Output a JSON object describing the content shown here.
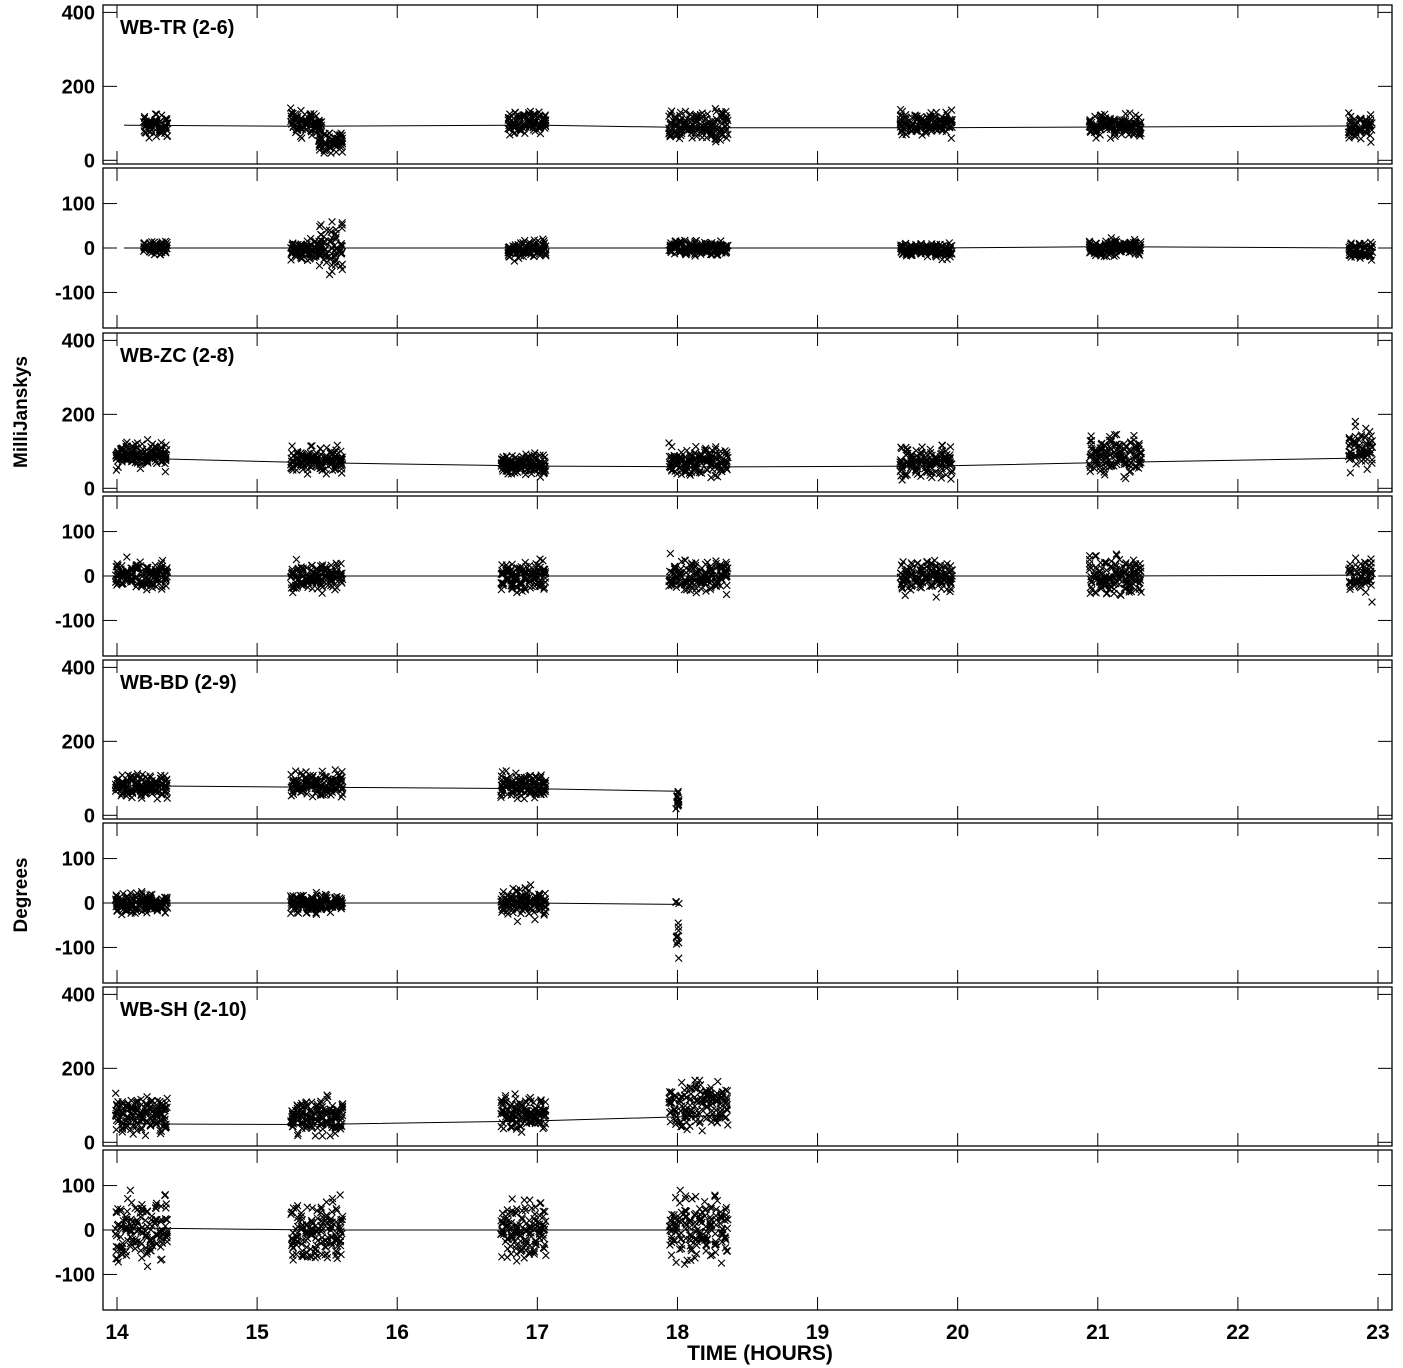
{
  "figure": {
    "y_label_amp": "MilliJanskys",
    "y_label_phase": "Degrees",
    "x_label": "TIME (HOURS)"
  },
  "chart_data": {
    "type": "scatter",
    "x_axis": {
      "label": "TIME (HOURS)",
      "range": [
        13.9,
        23.1
      ],
      "ticks": [
        14,
        15,
        16,
        17,
        18,
        19,
        20,
        21,
        22,
        23
      ]
    },
    "amp_axis": {
      "range": [
        -10,
        420
      ],
      "ticks": [
        0,
        200,
        400
      ],
      "unit": "MilliJanskys"
    },
    "phase_axis": {
      "range": [
        -180,
        180
      ],
      "ticks": [
        -100,
        0,
        100
      ],
      "unit": "Degrees"
    },
    "panels": [
      {
        "title": "WB-TR (2-6)",
        "amp_model": [
          [
            14.05,
            95
          ],
          [
            15.3,
            92
          ],
          [
            17.0,
            95
          ],
          [
            18.2,
            88
          ],
          [
            19.8,
            88
          ],
          [
            21.1,
            90
          ],
          [
            22.9,
            93
          ]
        ],
        "phase_model": [
          [
            14.05,
            0
          ],
          [
            15.3,
            0
          ],
          [
            17.0,
            0
          ],
          [
            18.2,
            0
          ],
          [
            19.8,
            0
          ],
          [
            21.1,
            3
          ],
          [
            22.9,
            0
          ]
        ],
        "scans": [
          {
            "t": [
              14.2,
              14.35
            ],
            "amp": 95,
            "amp_spread": 45,
            "phase": 0,
            "phase_spread": 25
          },
          {
            "t": [
              15.25,
              15.45
            ],
            "amp": 100,
            "amp_spread": 45,
            "phase": -5,
            "phase_spread": 30
          },
          {
            "t": [
              15.45,
              15.6
            ],
            "amp": 50,
            "amp_spread": 45,
            "phase": 0,
            "phase_spread": 85
          },
          {
            "t": [
              16.8,
              17.05
            ],
            "amp": 100,
            "amp_spread": 45,
            "phase": -5,
            "phase_spread": 30
          },
          {
            "t": [
              17.95,
              18.35
            ],
            "amp": 95,
            "amp_spread": 55,
            "phase": 0,
            "phase_spread": 25
          },
          {
            "t": [
              19.6,
              19.95
            ],
            "amp": 100,
            "amp_spread": 45,
            "phase": -5,
            "phase_spread": 25
          },
          {
            "t": [
              20.95,
              21.3
            ],
            "amp": 95,
            "amp_spread": 45,
            "phase": 0,
            "phase_spread": 25
          },
          {
            "t": [
              22.8,
              22.95
            ],
            "amp": 90,
            "amp_spread": 45,
            "phase": -5,
            "phase_spread": 30
          }
        ]
      },
      {
        "title": "WB-ZC (2-8)",
        "amp_model": [
          [
            14.05,
            82
          ],
          [
            15.3,
            70
          ],
          [
            17.0,
            60
          ],
          [
            18.3,
            58
          ],
          [
            19.8,
            60
          ],
          [
            21.1,
            70
          ],
          [
            22.9,
            82
          ]
        ],
        "phase_model": [
          [
            14.05,
            0
          ],
          [
            15.3,
            0
          ],
          [
            17.0,
            0
          ],
          [
            18.2,
            0
          ],
          [
            19.8,
            0
          ],
          [
            21.1,
            0
          ],
          [
            22.9,
            2
          ]
        ],
        "scans": [
          {
            "t": [
              14.0,
              14.35
            ],
            "amp": 90,
            "amp_spread": 50,
            "phase": 0,
            "phase_spread": 45
          },
          {
            "t": [
              15.25,
              15.6
            ],
            "amp": 75,
            "amp_spread": 50,
            "phase": 0,
            "phase_spread": 45
          },
          {
            "t": [
              16.75,
              17.05
            ],
            "amp": 65,
            "amp_spread": 45,
            "phase": 0,
            "phase_spread": 50
          },
          {
            "t": [
              17.95,
              18.35
            ],
            "amp": 70,
            "amp_spread": 60,
            "phase": 0,
            "phase_spread": 55
          },
          {
            "t": [
              19.6,
              19.95
            ],
            "amp": 70,
            "amp_spread": 55,
            "phase": 0,
            "phase_spread": 50
          },
          {
            "t": [
              20.95,
              21.3
            ],
            "amp": 90,
            "amp_spread": 75,
            "phase": 0,
            "phase_spread": 65
          },
          {
            "t": [
              22.8,
              22.95
            ],
            "amp": 110,
            "amp_spread": 80,
            "phase": 0,
            "phase_spread": 65
          }
        ]
      },
      {
        "title": "WB-BD (2-9)",
        "amp_model": [
          [
            14.05,
            80
          ],
          [
            15.4,
            76
          ],
          [
            16.95,
            72
          ],
          [
            18.0,
            65
          ]
        ],
        "phase_model": [
          [
            14.05,
            0
          ],
          [
            15.4,
            0
          ],
          [
            16.95,
            0
          ],
          [
            18.0,
            -3
          ]
        ],
        "scans": [
          {
            "t": [
              14.0,
              14.35
            ],
            "amp": 80,
            "amp_spread": 45,
            "phase": 0,
            "phase_spread": 35
          },
          {
            "t": [
              15.25,
              15.6
            ],
            "amp": 85,
            "amp_spread": 45,
            "phase": 0,
            "phase_spread": 30
          },
          {
            "t": [
              16.75,
              17.05
            ],
            "amp": 80,
            "amp_spread": 50,
            "phase": 0,
            "phase_spread": 45
          },
          {
            "t": [
              18.0,
              18.01
            ],
            "amp": 40,
            "amp_spread": 35,
            "phase": -40,
            "phase_spread": 110
          }
        ]
      },
      {
        "title": "WB-SH (2-10)",
        "amp_model": [
          [
            14.05,
            50
          ],
          [
            15.4,
            48
          ],
          [
            17.0,
            58
          ],
          [
            18.3,
            72
          ]
        ],
        "phase_model": [
          [
            14.05,
            5
          ],
          [
            15.4,
            0
          ],
          [
            17.0,
            0
          ],
          [
            18.3,
            0
          ]
        ],
        "scans": [
          {
            "t": [
              14.0,
              14.35
            ],
            "amp": 75,
            "amp_spread": 70,
            "phase": 0,
            "phase_spread": 100
          },
          {
            "t": [
              15.25,
              15.6
            ],
            "amp": 70,
            "amp_spread": 70,
            "phase": 0,
            "phase_spread": 100
          },
          {
            "t": [
              16.75,
              17.05
            ],
            "amp": 80,
            "amp_spread": 70,
            "phase": 0,
            "phase_spread": 100
          },
          {
            "t": [
              17.95,
              18.35
            ],
            "amp": 100,
            "amp_spread": 90,
            "phase": 0,
            "phase_spread": 100
          }
        ]
      }
    ]
  }
}
